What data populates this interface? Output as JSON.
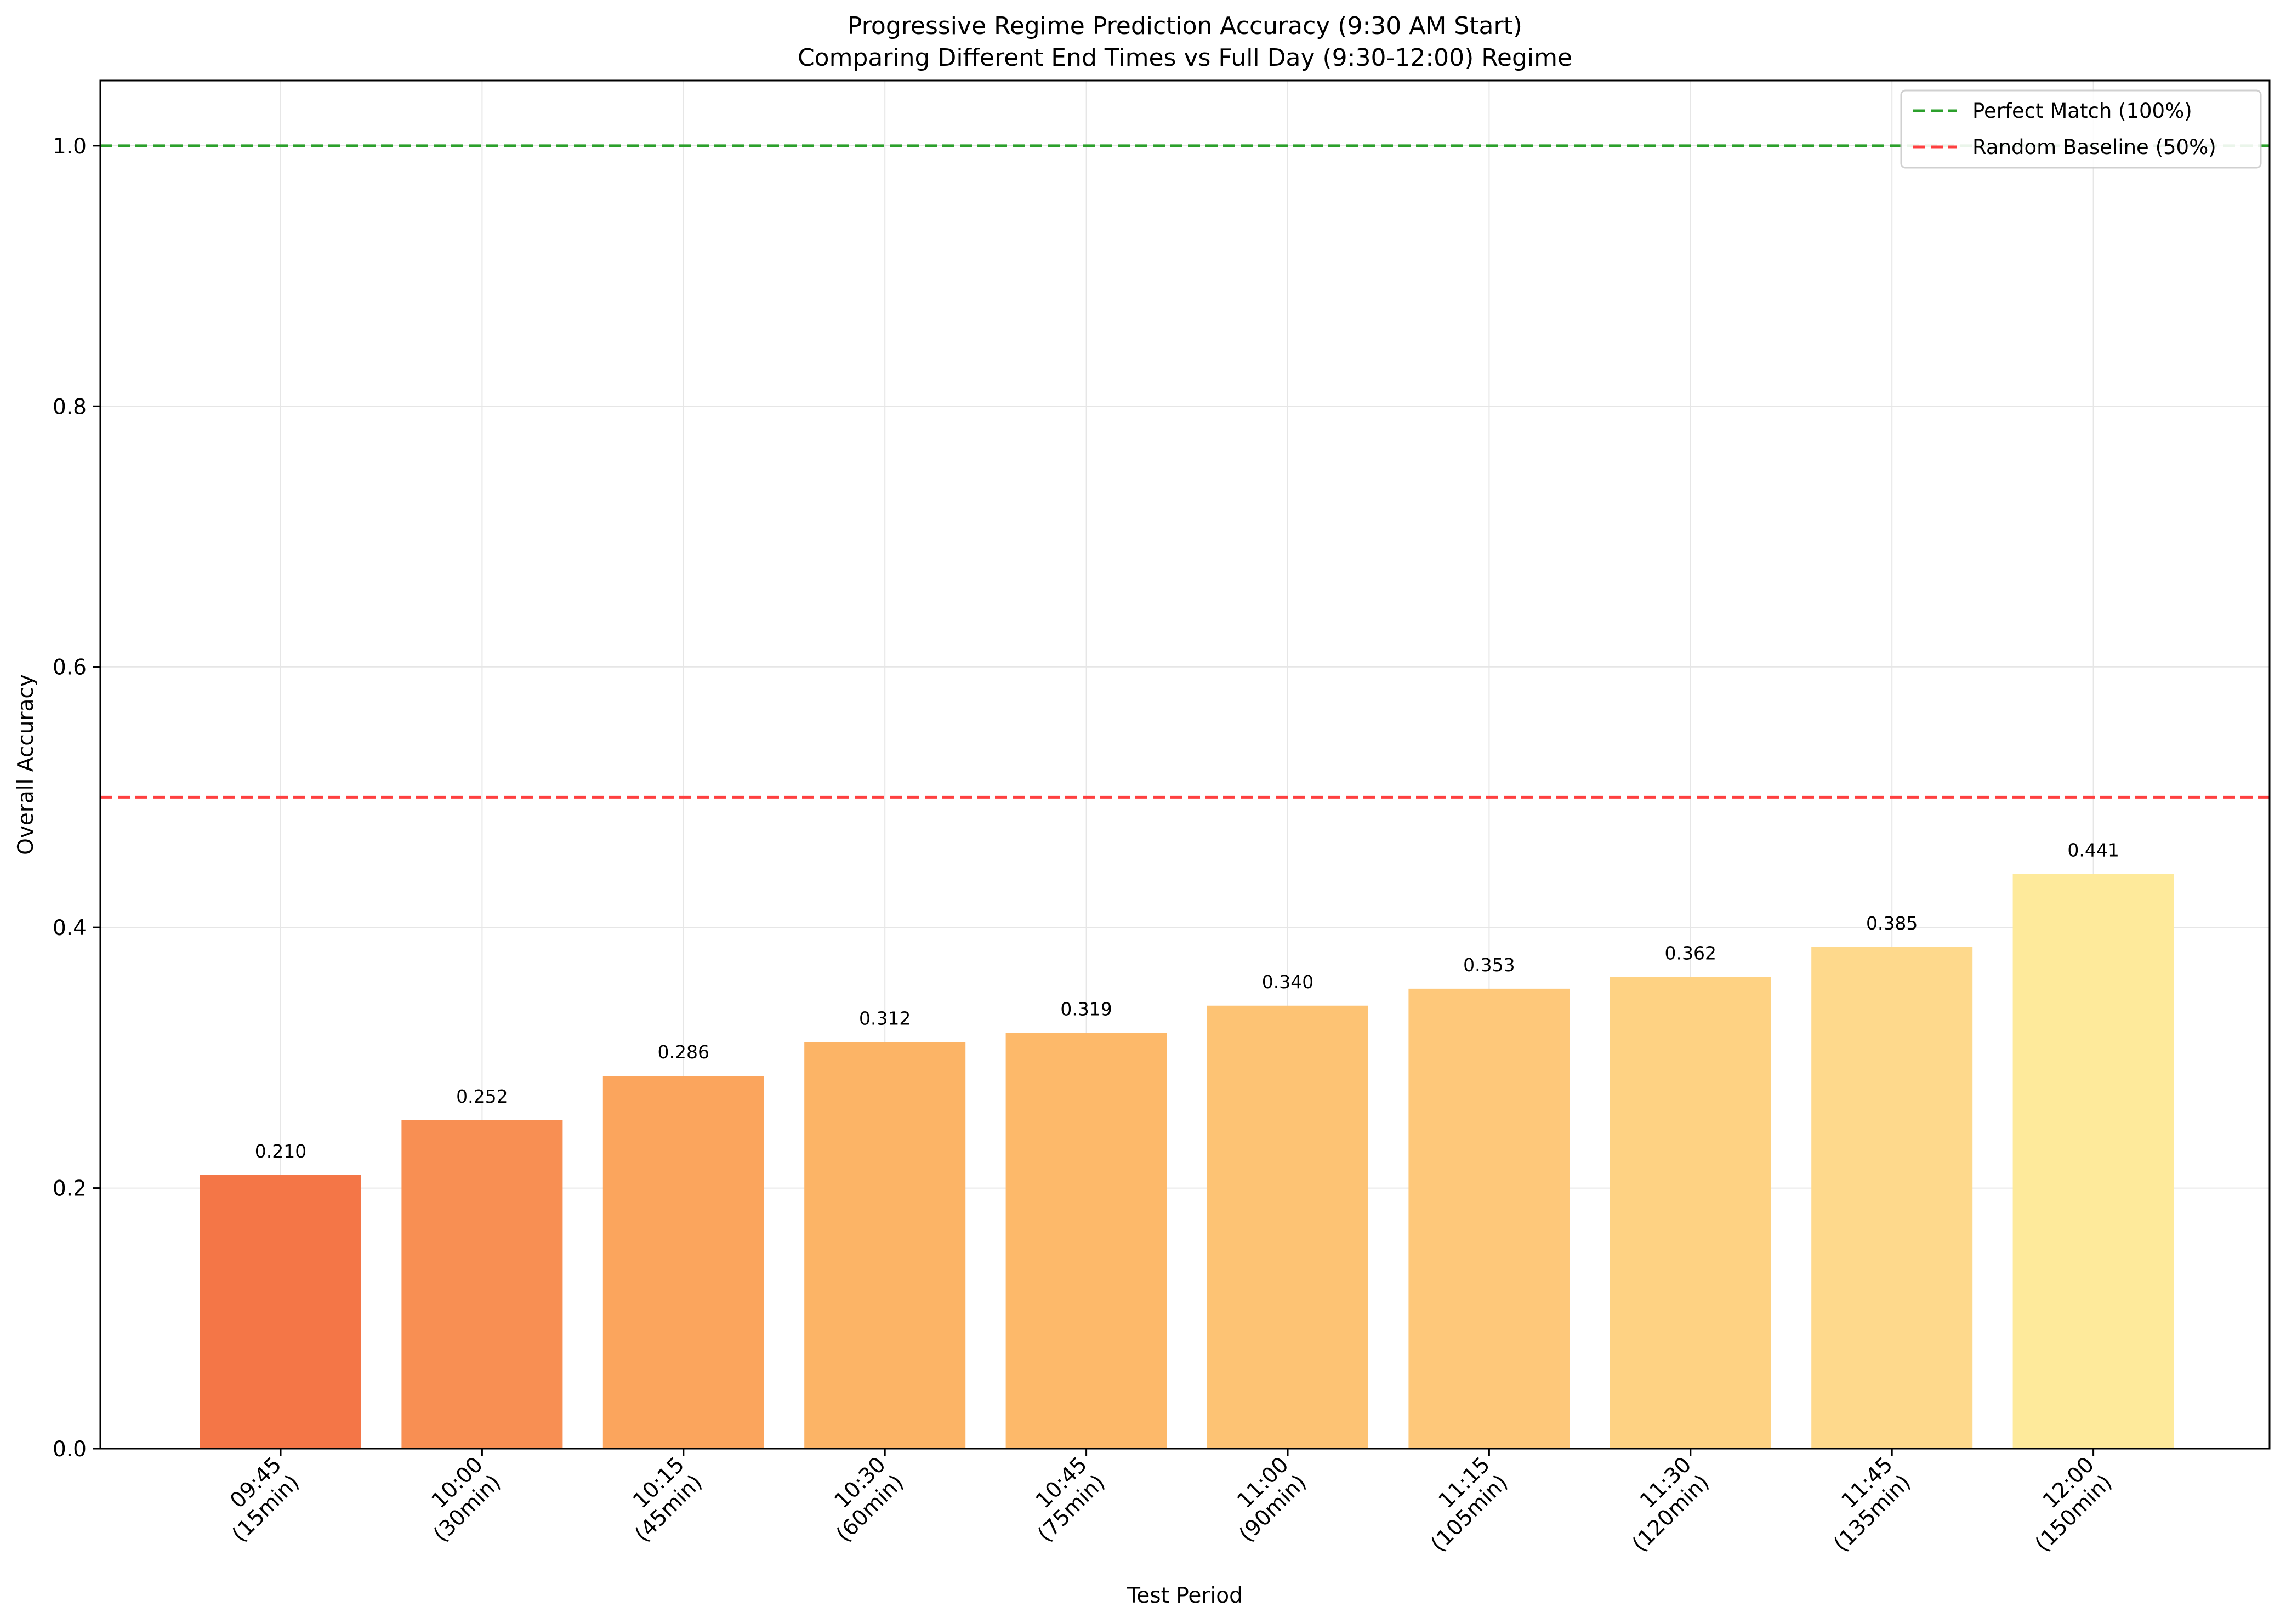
{
  "chart_data": {
    "type": "bar",
    "title_line1": "Progressive Regime Prediction Accuracy (9:30 AM Start)",
    "title_line2": "Comparing Different End Times vs Full Day (9:30-12:00) Regime",
    "xlabel": "Test Period",
    "ylabel": "Overall Accuracy",
    "ylim": [
      0,
      1.05
    ],
    "yticks": [
      0.0,
      0.2,
      0.4,
      0.6,
      0.8,
      1.0
    ],
    "ytick_labels": [
      "0.0",
      "0.2",
      "0.4",
      "0.6",
      "0.8",
      "1.0"
    ],
    "grid": true,
    "categories": [
      {
        "time": "09:45",
        "duration": "(15min)"
      },
      {
        "time": "10:00",
        "duration": "(30min)"
      },
      {
        "time": "10:15",
        "duration": "(45min)"
      },
      {
        "time": "10:30",
        "duration": "(60min)"
      },
      {
        "time": "10:45",
        "duration": "(75min)"
      },
      {
        "time": "11:00",
        "duration": "(90min)"
      },
      {
        "time": "11:15",
        "duration": "(105min)"
      },
      {
        "time": "11:30",
        "duration": "(120min)"
      },
      {
        "time": "11:45",
        "duration": "(135min)"
      },
      {
        "time": "12:00",
        "duration": "(150min)"
      }
    ],
    "values": [
      0.21,
      0.252,
      0.286,
      0.312,
      0.319,
      0.34,
      0.353,
      0.362,
      0.385,
      0.441
    ],
    "value_labels": [
      "0.210",
      "0.252",
      "0.286",
      "0.312",
      "0.319",
      "0.340",
      "0.353",
      "0.362",
      "0.385",
      "0.441"
    ],
    "bar_colors": [
      "#f47647",
      "#f88f53",
      "#fba55d",
      "#fcb466",
      "#fdb96a",
      "#fdc374",
      "#fec87a",
      "#fed283",
      "#fed98c",
      "#feea9b"
    ],
    "reference_lines": [
      {
        "name": "Perfect Match (100%)",
        "value": 1.0,
        "color": "#2ca02c"
      },
      {
        "name": "Random Baseline (50%)",
        "value": 0.5,
        "color": "#ff4040"
      }
    ],
    "legend_position": "top-right"
  }
}
